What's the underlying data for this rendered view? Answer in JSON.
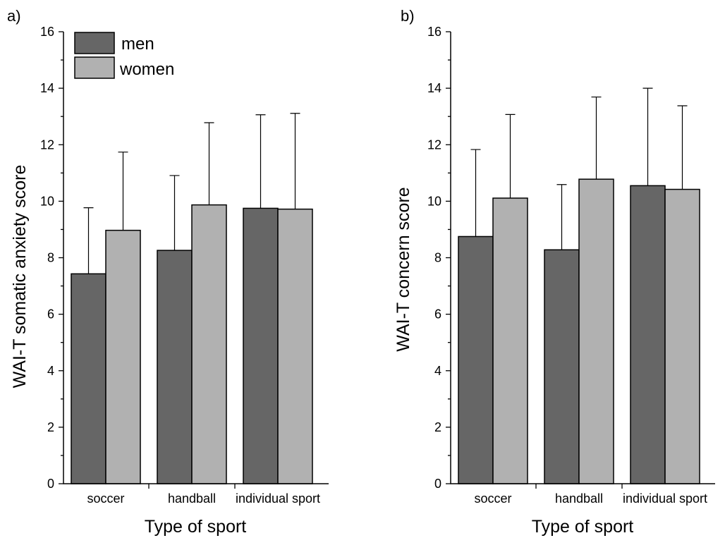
{
  "colors": {
    "men": "#666666",
    "women": "#b1b1b1"
  },
  "legend": {
    "men_label": "men",
    "women_label": "women"
  },
  "chart_data": [
    {
      "type": "bar",
      "panel_label": "a)",
      "categories": [
        "soccer",
        "handball",
        "individual sport"
      ],
      "series": [
        {
          "name": "men",
          "values": [
            7.43,
            8.26,
            9.75
          ],
          "errors": [
            2.34,
            2.65,
            3.31
          ]
        },
        {
          "name": "women",
          "values": [
            8.97,
            9.87,
            9.72
          ],
          "errors": [
            2.77,
            2.91,
            3.39
          ]
        }
      ],
      "xlabel": "Type of sport",
      "ylabel": "WAI-T somatic anxiety score",
      "ylim": [
        0,
        16
      ],
      "yticks": [
        "0",
        "2",
        "4",
        "6",
        "8",
        "10",
        "12",
        "14",
        "16"
      ],
      "legend": "top-left",
      "grid": false
    },
    {
      "type": "bar",
      "panel_label": "b)",
      "categories": [
        "soccer",
        "handball",
        "individual sport"
      ],
      "series": [
        {
          "name": "men",
          "values": [
            8.75,
            8.28,
            10.55
          ],
          "errors": [
            3.08,
            2.31,
            3.45
          ]
        },
        {
          "name": "women",
          "values": [
            10.11,
            10.78,
            10.42
          ],
          "errors": [
            2.96,
            2.91,
            2.96
          ]
        }
      ],
      "xlabel": "Type of sport",
      "ylabel": "WAI-T concern score",
      "ylim": [
        0,
        16
      ],
      "yticks": [
        "0",
        "2",
        "4",
        "6",
        "8",
        "10",
        "12",
        "14",
        "16"
      ],
      "grid": false
    }
  ]
}
